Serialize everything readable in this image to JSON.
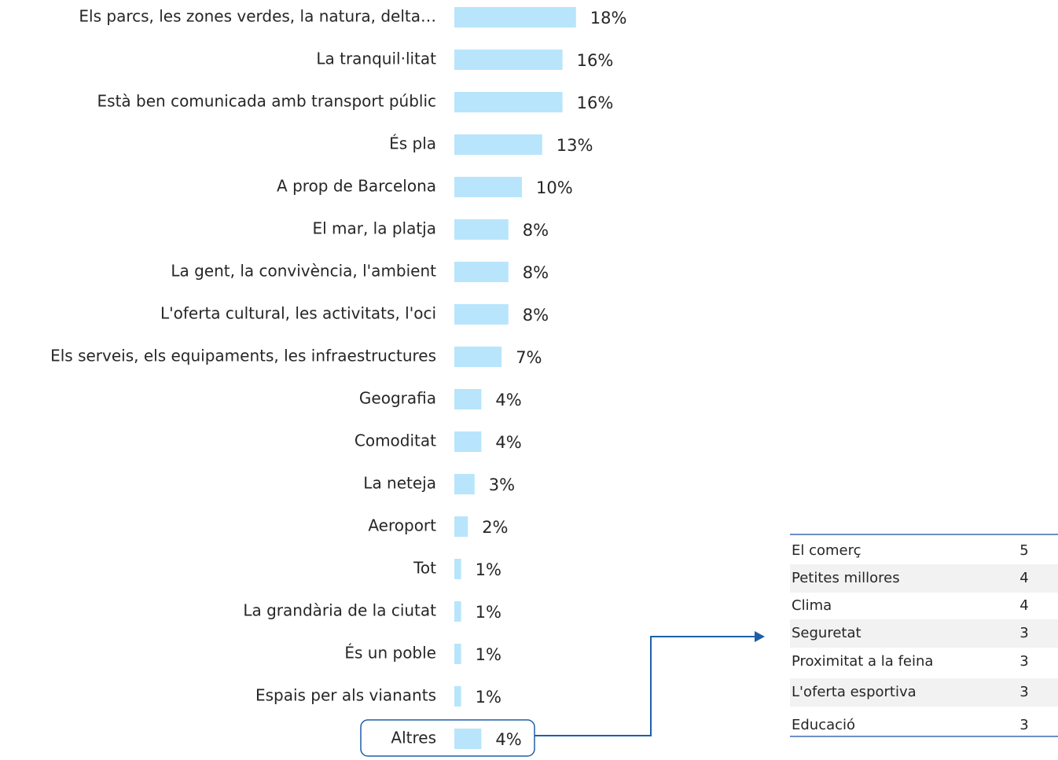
{
  "chart_data": {
    "type": "hbar",
    "categories": [
      "Els parcs, les zones verdes, la natura, delta…",
      "La tranquil·litat",
      "Està ben comunicada amb transport públic",
      "És pla",
      "A prop de Barcelona",
      "El mar, la platja",
      "La gent, la convivència, l'ambient",
      "L'oferta cultural, les activitats, l'oci",
      "Els serveis, els equipaments, les infraestructures",
      "Geografia",
      "Comoditat",
      "La neteja",
      "Aeroport",
      "Tot",
      "La grandària de la ciutat",
      "És un poble",
      "Espais per als vianants",
      "Altres"
    ],
    "values": [
      18,
      16,
      16,
      13,
      10,
      8,
      8,
      8,
      7,
      4,
      4,
      3,
      2,
      1,
      1,
      1,
      1,
      4
    ],
    "value_labels": [
      "18%",
      "16%",
      "16%",
      "13%",
      "10%",
      "8%",
      "8%",
      "8%",
      "7%",
      "4%",
      "4%",
      "3%",
      "2%",
      "1%",
      "1%",
      "1%",
      "1%",
      "4%"
    ],
    "color": "#b8e5fb"
  },
  "table": {
    "rows": [
      [
        "El comerç",
        "5"
      ],
      [
        "Petites millores",
        "4"
      ],
      [
        "Clima",
        "4"
      ],
      [
        "Seguretat",
        "3"
      ],
      [
        "Proximitat a la feina",
        "3"
      ],
      [
        "L'oferta esportiva",
        "3"
      ],
      [
        "Educació",
        "3"
      ]
    ]
  }
}
